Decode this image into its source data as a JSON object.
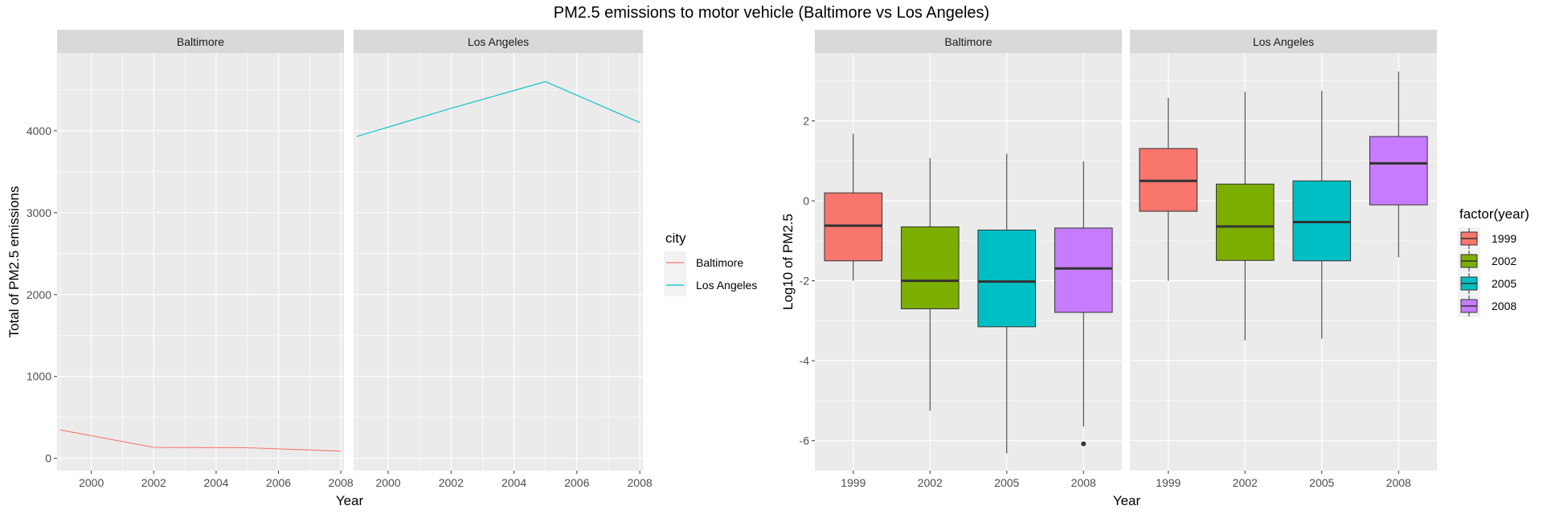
{
  "title": "PM2.5 emissions to motor vehicle (Baltimore vs Los Angeles)",
  "colors": {
    "panel_bg": "#EBEBEB",
    "strip_bg": "#D9D9D9",
    "grid": "#FFFFFF",
    "baltimore_line": "#F8766D",
    "los_angeles_line": "#00BFC4",
    "fill_1999": "#F8766D",
    "fill_2002": "#7CAE00",
    "fill_2005": "#00BFC4",
    "fill_2008": "#C77CFF"
  },
  "chart_data": [
    {
      "type": "line",
      "facets": [
        "Baltimore",
        "Los Angeles"
      ],
      "xlabel": "Year",
      "ylabel": "Total of PM2.5 emissions",
      "xlim": [
        1998.9,
        2008.1
      ],
      "ylim": [
        -150,
        4950
      ],
      "xticks": [
        2000,
        2002,
        2004,
        2006,
        2008
      ],
      "yticks": [
        0,
        1000,
        2000,
        3000,
        4000
      ],
      "grid": true,
      "legend": {
        "title": "city",
        "position": "right",
        "entries": [
          "Baltimore",
          "Los Angeles"
        ]
      },
      "series": [
        {
          "name": "Baltimore",
          "facet": "Baltimore",
          "color": "#F8766D",
          "x": [
            1999,
            2002,
            2005,
            2008
          ],
          "y": [
            347,
            134,
            130,
            88
          ]
        },
        {
          "name": "Los Angeles",
          "facet": "Los Angeles",
          "color": "#00BFC4",
          "x": [
            1999,
            2002,
            2005,
            2008
          ],
          "y": [
            3931,
            4274,
            4601,
            4101
          ]
        }
      ]
    },
    {
      "type": "boxplot",
      "facets": [
        "Baltimore",
        "Los Angeles"
      ],
      "xlabel": "Year",
      "ylabel": "Log10 of PM2.5",
      "categories": [
        "1999",
        "2002",
        "2005",
        "2008"
      ],
      "ylim": [
        -6.75,
        3.7
      ],
      "yticks": [
        -6,
        -4,
        -2,
        0,
        2
      ],
      "grid": true,
      "legend": {
        "title": "factor(year)",
        "position": "right",
        "entries": [
          "1999",
          "2002",
          "2005",
          "2008"
        ]
      },
      "boxes": [
        {
          "facet": "Baltimore",
          "category": "1999",
          "whisker_low": -2.0,
          "q1": -1.5,
          "median": -0.62,
          "q3": 0.2,
          "whisker_high": 1.68,
          "outliers": []
        },
        {
          "facet": "Baltimore",
          "category": "2002",
          "whisker_low": -5.25,
          "q1": -2.7,
          "median": -2.0,
          "q3": -0.65,
          "whisker_high": 1.07,
          "outliers": []
        },
        {
          "facet": "Baltimore",
          "category": "2005",
          "whisker_low": -6.32,
          "q1": -3.15,
          "median": -2.02,
          "q3": -0.73,
          "whisker_high": 1.18,
          "outliers": []
        },
        {
          "facet": "Baltimore",
          "category": "2008",
          "whisker_low": -5.65,
          "q1": -2.79,
          "median": -1.69,
          "q3": -0.68,
          "whisker_high": 0.99,
          "outliers": [
            -6.08
          ]
        },
        {
          "facet": "Los Angeles",
          "category": "1999",
          "whisker_low": -2.0,
          "q1": -0.26,
          "median": 0.5,
          "q3": 1.31,
          "whisker_high": 2.58,
          "outliers": []
        },
        {
          "facet": "Los Angeles",
          "category": "2002",
          "whisker_low": -3.49,
          "q1": -1.49,
          "median": -0.64,
          "q3": 0.42,
          "whisker_high": 2.73,
          "outliers": []
        },
        {
          "facet": "Los Angeles",
          "category": "2005",
          "whisker_low": -3.45,
          "q1": -1.5,
          "median": -0.53,
          "q3": 0.5,
          "whisker_high": 2.75,
          "outliers": []
        },
        {
          "facet": "Los Angeles",
          "category": "2008",
          "whisker_low": -1.41,
          "q1": -0.1,
          "median": 0.94,
          "q3": 1.61,
          "whisker_high": 3.23,
          "outliers": []
        }
      ]
    }
  ]
}
